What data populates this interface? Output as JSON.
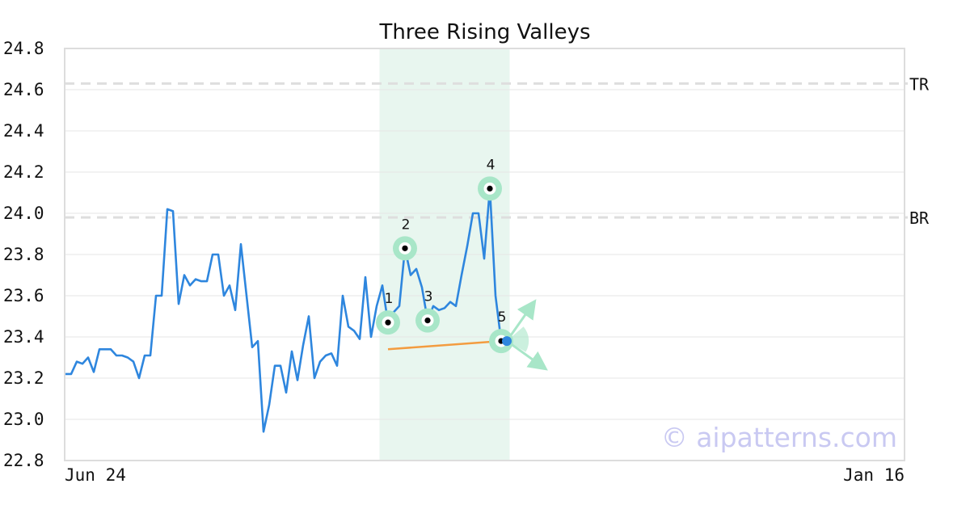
{
  "chart_data": {
    "type": "line",
    "title": "Three Rising Valleys",
    "x_tick_labels": [
      "Jun 24",
      "Jan 16"
    ],
    "ylim": [
      22.8,
      24.8
    ],
    "y_ticks": [
      "22.8",
      "23.0",
      "23.2",
      "23.4",
      "23.6",
      "23.8",
      "24.0",
      "24.2",
      "24.4",
      "24.6",
      "24.8"
    ],
    "grid": "horizontal",
    "series": [
      {
        "color": "#2e86de",
        "values": [
          23.22,
          23.22,
          23.28,
          23.27,
          23.3,
          23.23,
          23.34,
          23.34,
          23.34,
          23.31,
          23.31,
          23.3,
          23.28,
          23.2,
          23.31,
          23.31,
          23.6,
          23.6,
          24.02,
          24.01,
          23.56,
          23.7,
          23.65,
          23.68,
          23.67,
          23.67,
          23.8,
          23.8,
          23.6,
          23.65,
          23.53,
          23.85,
          23.6,
          23.35,
          23.38,
          22.94,
          23.07,
          23.26,
          23.26,
          23.13,
          23.33,
          23.19,
          23.36,
          23.5,
          23.2,
          23.28,
          23.31,
          23.32,
          23.26,
          23.6,
          23.45,
          23.43,
          23.39,
          23.69,
          23.4,
          23.55,
          23.65,
          23.47,
          23.52,
          23.55,
          23.83,
          23.7,
          23.73,
          23.64,
          23.48,
          23.55,
          23.53,
          23.54,
          23.57,
          23.55,
          23.7,
          23.84,
          24.0,
          24.0,
          23.78,
          24.12,
          23.6,
          23.38
        ]
      }
    ],
    "pattern": {
      "points": [
        {
          "label": "1",
          "index": 57,
          "value": 23.47
        },
        {
          "label": "2",
          "index": 60,
          "value": 23.83
        },
        {
          "label": "3",
          "index": 64,
          "value": 23.48
        },
        {
          "label": "4",
          "index": 75,
          "value": 24.12
        },
        {
          "label": "5",
          "index": 77,
          "value": 23.38
        }
      ],
      "highlight_range": [
        55.5,
        78.5
      ],
      "trend_line": {
        "from_index": 57,
        "from_value": 23.34,
        "to_index": 77,
        "to_value": 23.38,
        "color": "#f39c40"
      },
      "highlight_color": "#e8f6ef",
      "marker_color": "#a8e6c8"
    },
    "levels": [
      {
        "label": "TR",
        "value": 24.63
      },
      {
        "label": "BR",
        "value": 23.98
      }
    ],
    "watermark": "© aipatterns.com"
  }
}
